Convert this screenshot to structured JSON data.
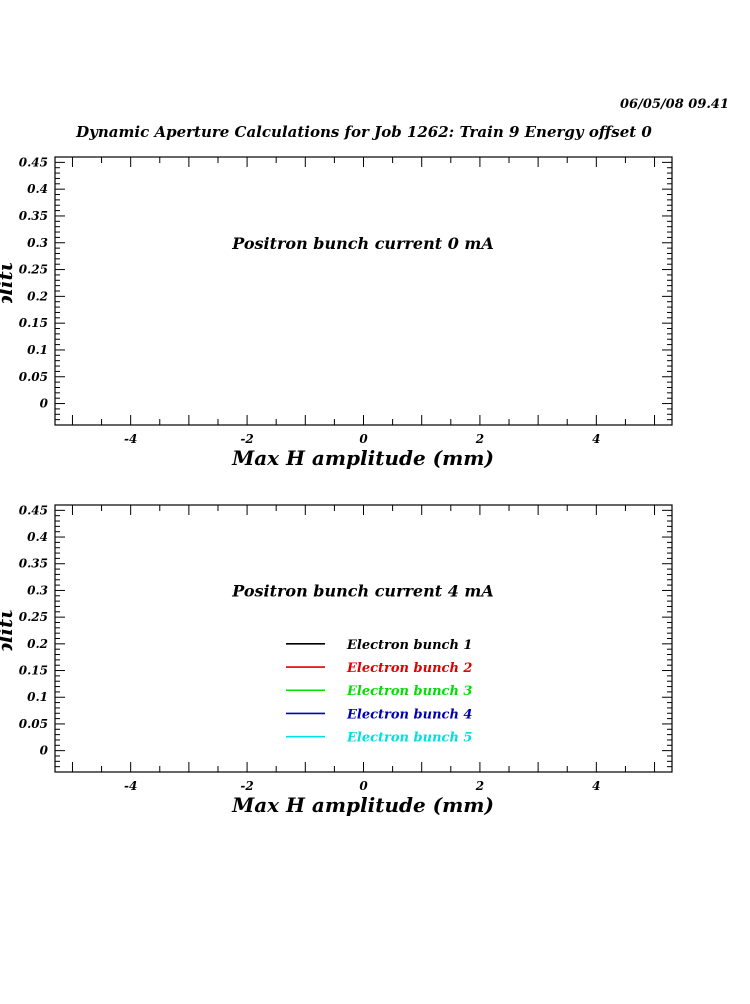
{
  "header": {
    "datetime": "06/05/08   09.41",
    "title": "Dynamic Aperture Calculations for Job 1262:  Train 9   Energy offset  0"
  },
  "chart_data": [
    {
      "type": "line",
      "annotation": "Positron bunch current  0 mA",
      "xlabel": "Max H amplitude (mm)",
      "ylabel": "Max V amplitude (mm)",
      "xlim": [
        -5.3,
        5.3
      ],
      "ylim": [
        -0.04,
        0.46
      ],
      "xticks": [
        -4,
        -2,
        0,
        2,
        4
      ],
      "yticks": [
        0,
        0.05,
        0.1,
        0.15,
        0.2,
        0.25,
        0.3,
        0.35,
        0.4,
        0.45
      ],
      "ytick_labels": [
        "0",
        "0.05",
        "0.1",
        "0.15",
        "0.2",
        "0.25",
        "0.3",
        "0.35",
        "0.4",
        "0.45"
      ],
      "series": [],
      "legend": []
    },
    {
      "type": "line",
      "annotation": "Positron bunch current  4 mA",
      "xlabel": "Max H amplitude (mm)",
      "ylabel": "Max V amplitude (mm)",
      "xlim": [
        -5.3,
        5.3
      ],
      "ylim": [
        -0.04,
        0.46
      ],
      "xticks": [
        -4,
        -2,
        0,
        2,
        4
      ],
      "yticks": [
        0,
        0.05,
        0.1,
        0.15,
        0.2,
        0.25,
        0.3,
        0.35,
        0.4,
        0.45
      ],
      "ytick_labels": [
        "0",
        "0.05",
        "0.1",
        "0.15",
        "0.2",
        "0.25",
        "0.3",
        "0.35",
        "0.4",
        "0.45"
      ],
      "series": [
        {
          "name": "Electron bunch 1",
          "color": "#000000",
          "values": []
        },
        {
          "name": "Electron bunch 2",
          "color": "#e00000",
          "values": []
        },
        {
          "name": "Electron bunch 3",
          "color": "#00e000",
          "values": []
        },
        {
          "name": "Electron bunch 4",
          "color": "#0000b0",
          "values": []
        },
        {
          "name": "Electron bunch 5",
          "color": "#00e0e0",
          "values": []
        }
      ],
      "legend": [
        {
          "name": "Electron bunch 1",
          "color": "#000000"
        },
        {
          "name": "Electron bunch 2",
          "color": "#e00000"
        },
        {
          "name": "Electron bunch 3",
          "color": "#00e000"
        },
        {
          "name": "Electron bunch 4",
          "color": "#0000b0"
        },
        {
          "name": "Electron bunch 5",
          "color": "#00e0e0"
        }
      ]
    }
  ]
}
